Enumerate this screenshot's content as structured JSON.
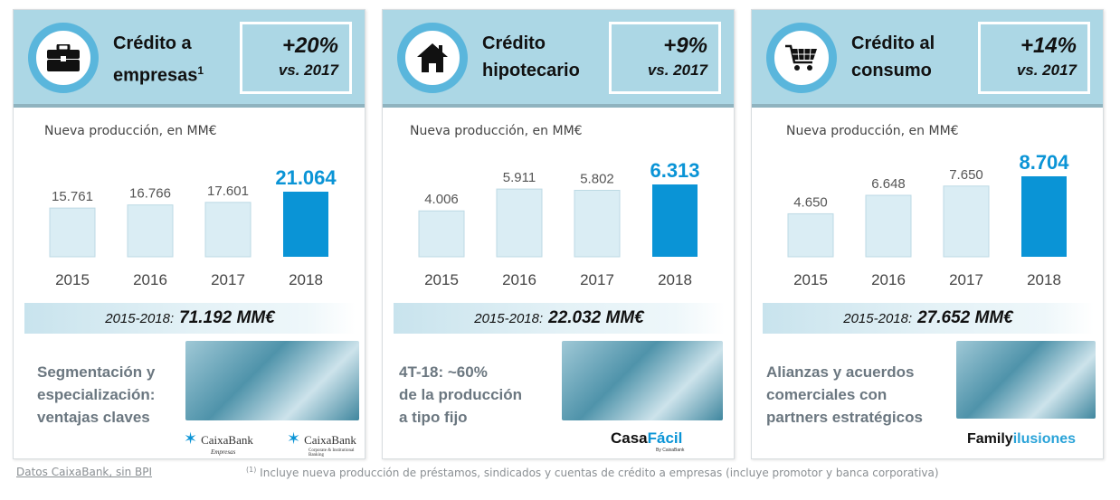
{
  "panels": [
    {
      "title_line1": "Crédito a",
      "title_line2": "empresas",
      "title_sup": "1",
      "icon": "briefcase-icon",
      "growth": "+20%",
      "growth_vs": "vs. 2017",
      "subtitle": "Nueva producción, en MM€",
      "total_label": "2015-2018:",
      "total_value": "71.192 MM€",
      "note": [
        "Segmentación y",
        "especialización:",
        "ventajas claves"
      ],
      "logos": [
        "CaixaBank",
        "Empresas",
        "CaixaBank",
        "Corporate & Institutional Banking"
      ]
    },
    {
      "title_line1": "Crédito",
      "title_line2": "hipotecario",
      "title_sup": "",
      "icon": "house-icon",
      "growth": "+9%",
      "growth_vs": "vs. 2017",
      "subtitle": "Nueva producción, en MM€",
      "total_label": "2015-2018:",
      "total_value": "22.032 MM€",
      "note": [
        "4T-18: ~60%",
        "de la producción",
        "a tipo fijo"
      ],
      "logos": [
        "Casa",
        "Fácil",
        "By CaixaBank"
      ]
    },
    {
      "title_line1": "Crédito al",
      "title_line2": "consumo",
      "title_sup": "",
      "icon": "shopping-cart-icon",
      "growth": "+14%",
      "growth_vs": "vs. 2017",
      "subtitle": "Nueva producción, en MM€",
      "total_label": "2015-2018:",
      "total_value": "27.652 MM€",
      "note": [
        "Alianzas y acuerdos",
        "comerciales con",
        "partners estratégicos"
      ],
      "logos": [
        "Family",
        "ilusiones"
      ]
    }
  ],
  "colors": {
    "header": "#acd7e5",
    "highlight": "#0a94d6",
    "bar": "#daedf4",
    "bar_border": "#bcd9e4"
  },
  "chart_data": [
    {
      "type": "bar",
      "title": "Crédito a empresas",
      "ylabel": "Nueva producción, en MM€",
      "categories": [
        "2015",
        "2016",
        "2017",
        "2018"
      ],
      "values": [
        15.761,
        16.766,
        17.601,
        21.064
      ],
      "labels": [
        "15.761",
        "16.766",
        "17.601",
        "21.064"
      ],
      "highlight": "2018"
    },
    {
      "type": "bar",
      "title": "Crédito hipotecario",
      "ylabel": "Nueva producción, en MM€",
      "categories": [
        "2015",
        "2016",
        "2017",
        "2018"
      ],
      "values": [
        4.006,
        5.911,
        5.802,
        6.313
      ],
      "labels": [
        "4.006",
        "5.911",
        "5.802",
        "6.313"
      ],
      "highlight": "2018"
    },
    {
      "type": "bar",
      "title": "Crédito al consumo",
      "ylabel": "Nueva producción, en MM€",
      "categories": [
        "2015",
        "2016",
        "2017",
        "2018"
      ],
      "values": [
        4.65,
        6.648,
        7.65,
        8.704
      ],
      "labels": [
        "4.650",
        "6.648",
        "7.650",
        "8.704"
      ],
      "highlight": "2018"
    }
  ],
  "footer": {
    "source": "Datos CaixaBank, sin BPI",
    "footnote_mark": "(1)",
    "footnote": "Incluye nueva producción de préstamos, sindicados y cuentas de crédito a empresas (incluye promotor y banca corporativa)"
  }
}
